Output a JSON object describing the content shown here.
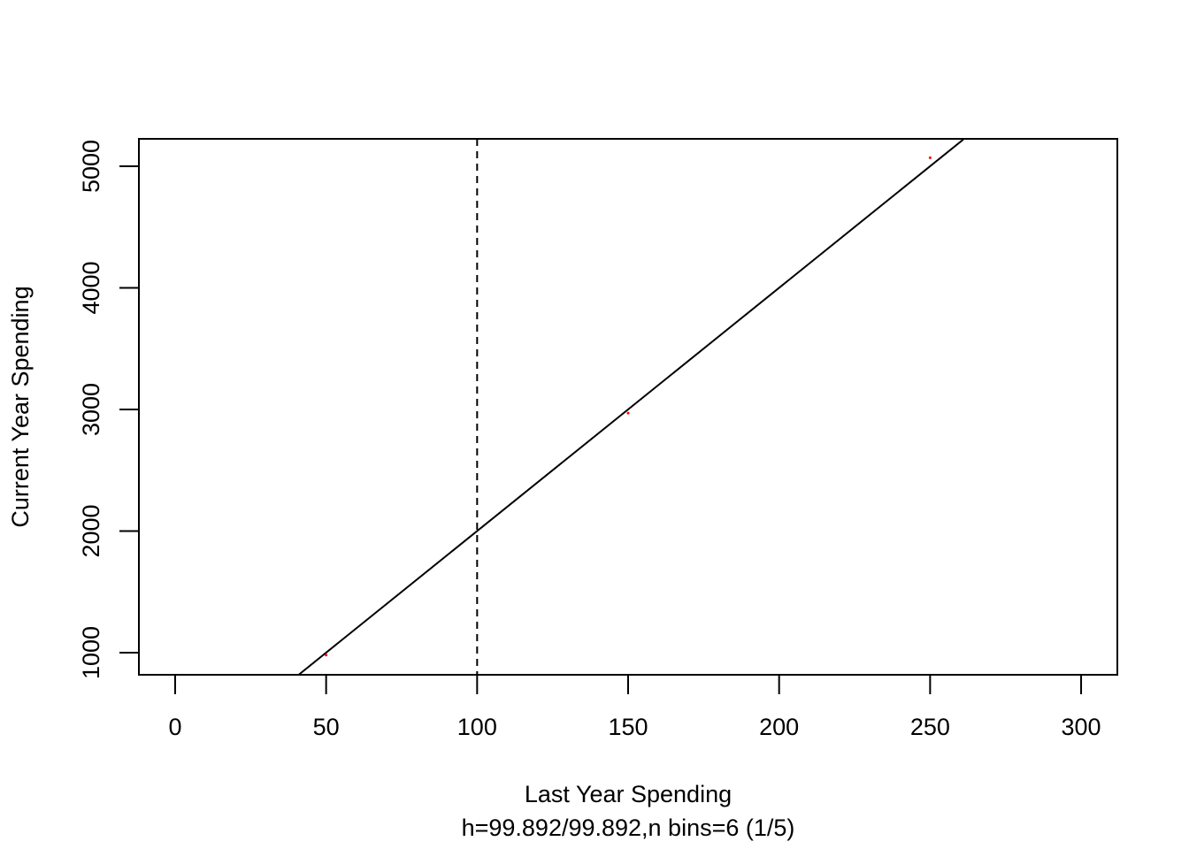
{
  "chart_data": {
    "type": "scatter",
    "xlabel": "Last Year Spending",
    "subtitle": "h=99.892/99.892,n bins=6 (1/5)",
    "ylabel": "Current Year Spending",
    "xlim": [
      -12,
      312
    ],
    "ylim": [
      818,
      5225
    ],
    "xticks": [
      0,
      50,
      100,
      150,
      200,
      250,
      300
    ],
    "yticks": [
      1000,
      2000,
      3000,
      4000,
      5000
    ],
    "points": {
      "x": [
        50,
        150,
        250
      ],
      "values": [
        980,
        2970,
        5070
      ],
      "color": "#ff0000"
    },
    "fit_line": {
      "x": [
        41,
        261
      ],
      "values": [
        820,
        5220
      ],
      "color": "#000000"
    },
    "vline": 100
  }
}
